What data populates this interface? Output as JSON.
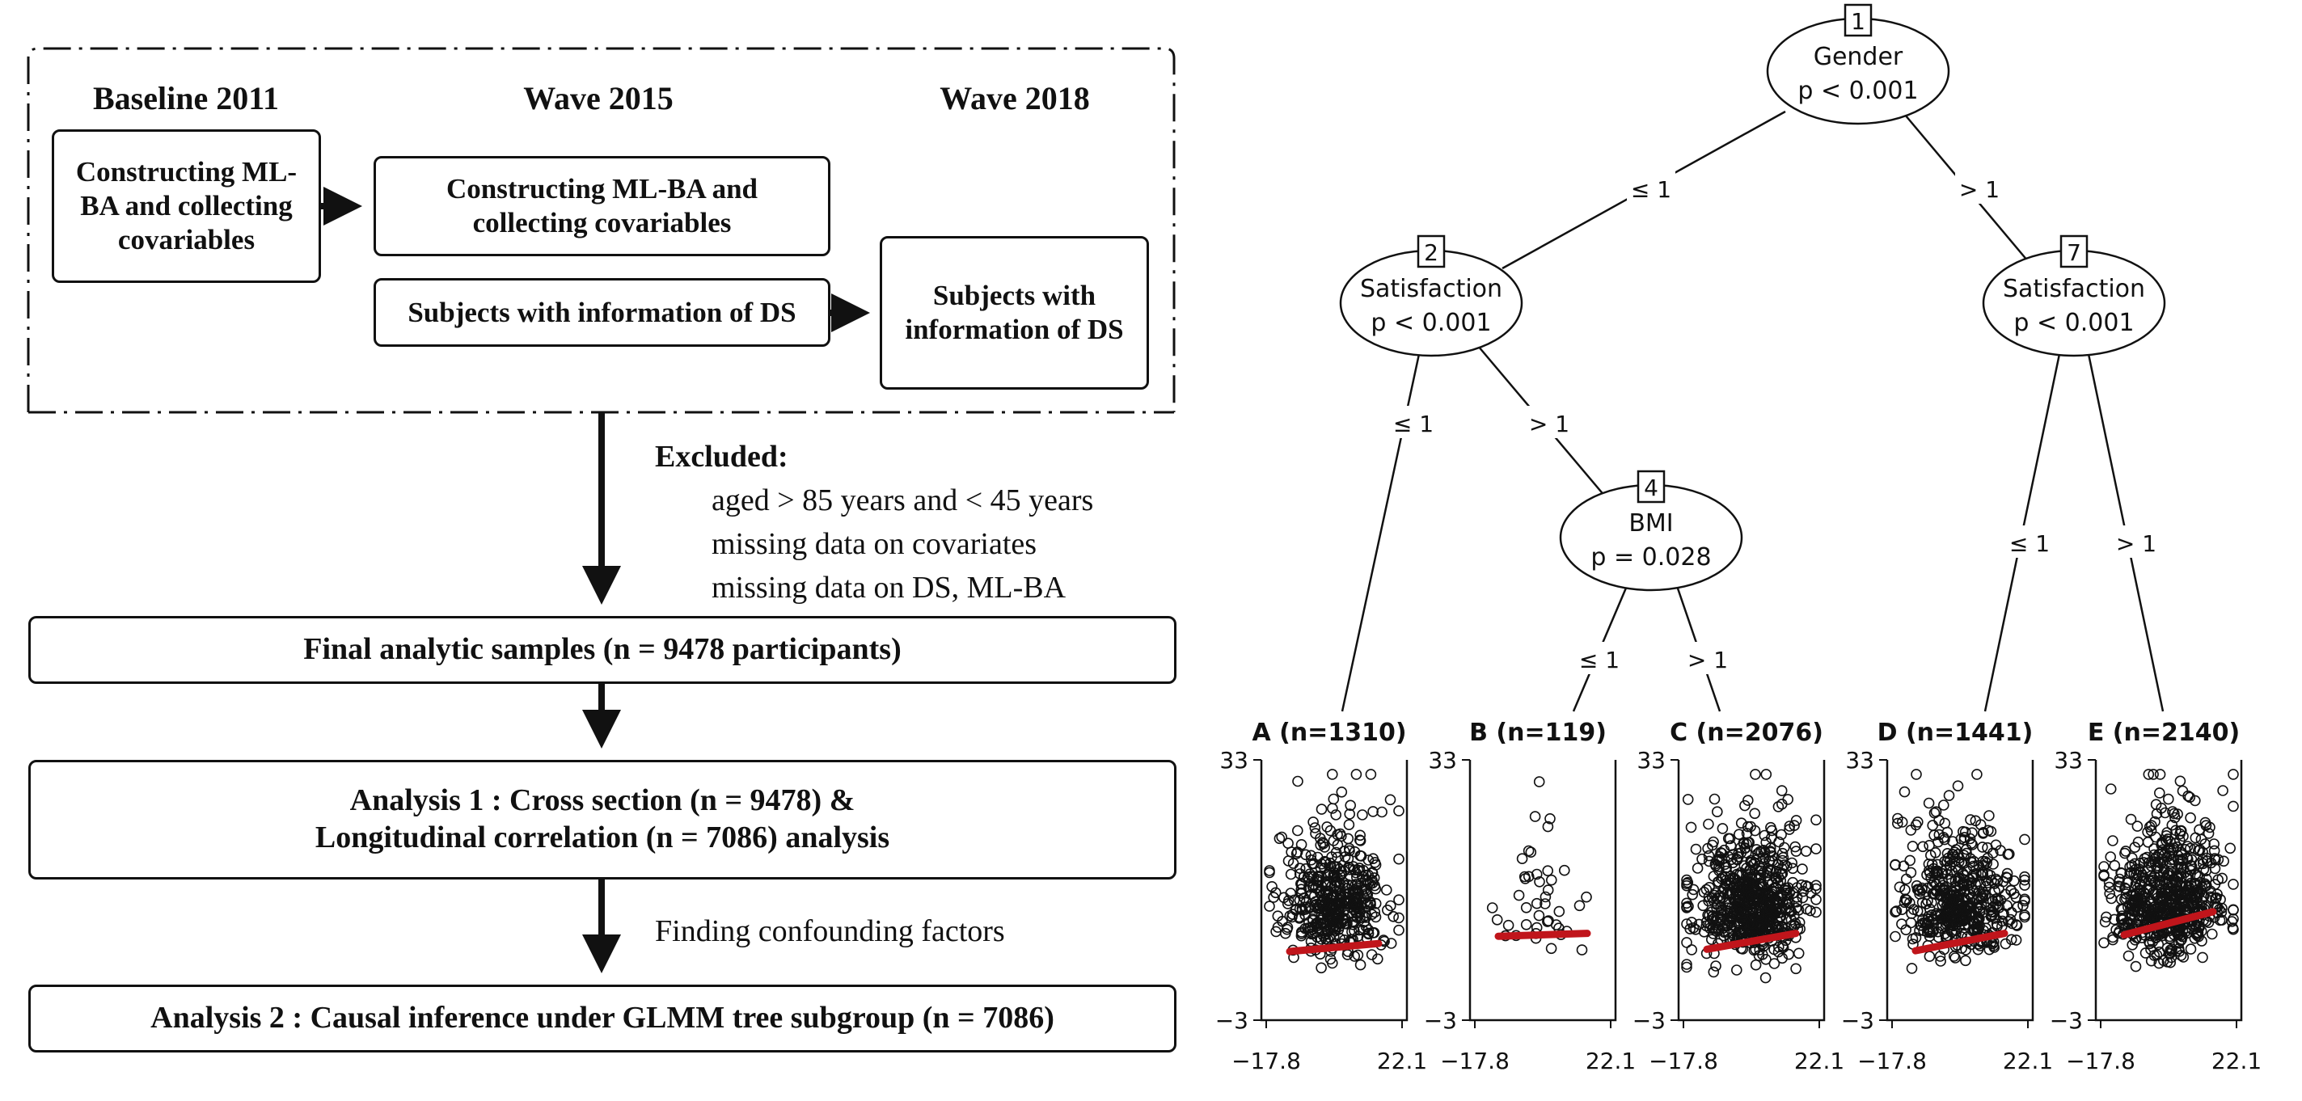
{
  "flowchart": {
    "headers": {
      "baseline": "Baseline 2011",
      "wave2015": "Wave 2015",
      "wave2018": "Wave 2018"
    },
    "boxes": {
      "baseline_construct": "Constructing ML-BA and collecting covariables",
      "wave2015_construct": "Constructing ML-BA and collecting covariables",
      "wave2015_subjects": "Subjects with information of DS",
      "wave2018_subjects": "Subjects with information of DS",
      "final_samples": "Final analytic samples (n = 9478 participants)",
      "analysis1_line1": "Analysis 1 : Cross section (n = 9478) &",
      "analysis1_line2": "Longitudinal correlation (n = 7086) analysis",
      "analysis2": "Analysis 2 : Causal inference under GLMM tree subgroup (n = 7086)"
    },
    "excluded": {
      "title": "Excluded:",
      "items": [
        "aged > 85 years and < 45 years",
        "missing data on covariates",
        "missing data on DS, ML-BA"
      ]
    },
    "confounding_label": "Finding confounding factors"
  },
  "tree": {
    "nodes": [
      {
        "id": "1",
        "variable": "Gender",
        "p": "p < 0.001"
      },
      {
        "id": "2",
        "variable": "Satisfaction",
        "p": "p < 0.001"
      },
      {
        "id": "7",
        "variable": "Satisfaction",
        "p": "p < 0.001"
      },
      {
        "id": "4",
        "variable": "BMI",
        "p": "p = 0.028"
      }
    ],
    "edge_labels": {
      "le1": "≤ 1",
      "gt1": "> 1"
    },
    "y_ticks": [
      "33",
      "−3"
    ],
    "x_ticks": [
      "−17.8",
      "22.1"
    ],
    "regression_color": "#c0151b",
    "leaves": [
      {
        "title": "A (n=1310)",
        "n": 1310,
        "slope_start": 6.5,
        "slope_end": 7.6
      },
      {
        "title": "B (n=119)",
        "n": 119,
        "slope_start": 8.6,
        "slope_end": 9.0
      },
      {
        "title": "C (n=2076)",
        "n": 2076,
        "slope_start": 6.8,
        "slope_end": 9.0
      },
      {
        "title": "D (n=1441)",
        "n": 1441,
        "slope_start": 6.6,
        "slope_end": 9.0
      },
      {
        "title": "E (n=2140)",
        "n": 2140,
        "slope_start": 8.8,
        "slope_end": 12.0
      }
    ]
  }
}
